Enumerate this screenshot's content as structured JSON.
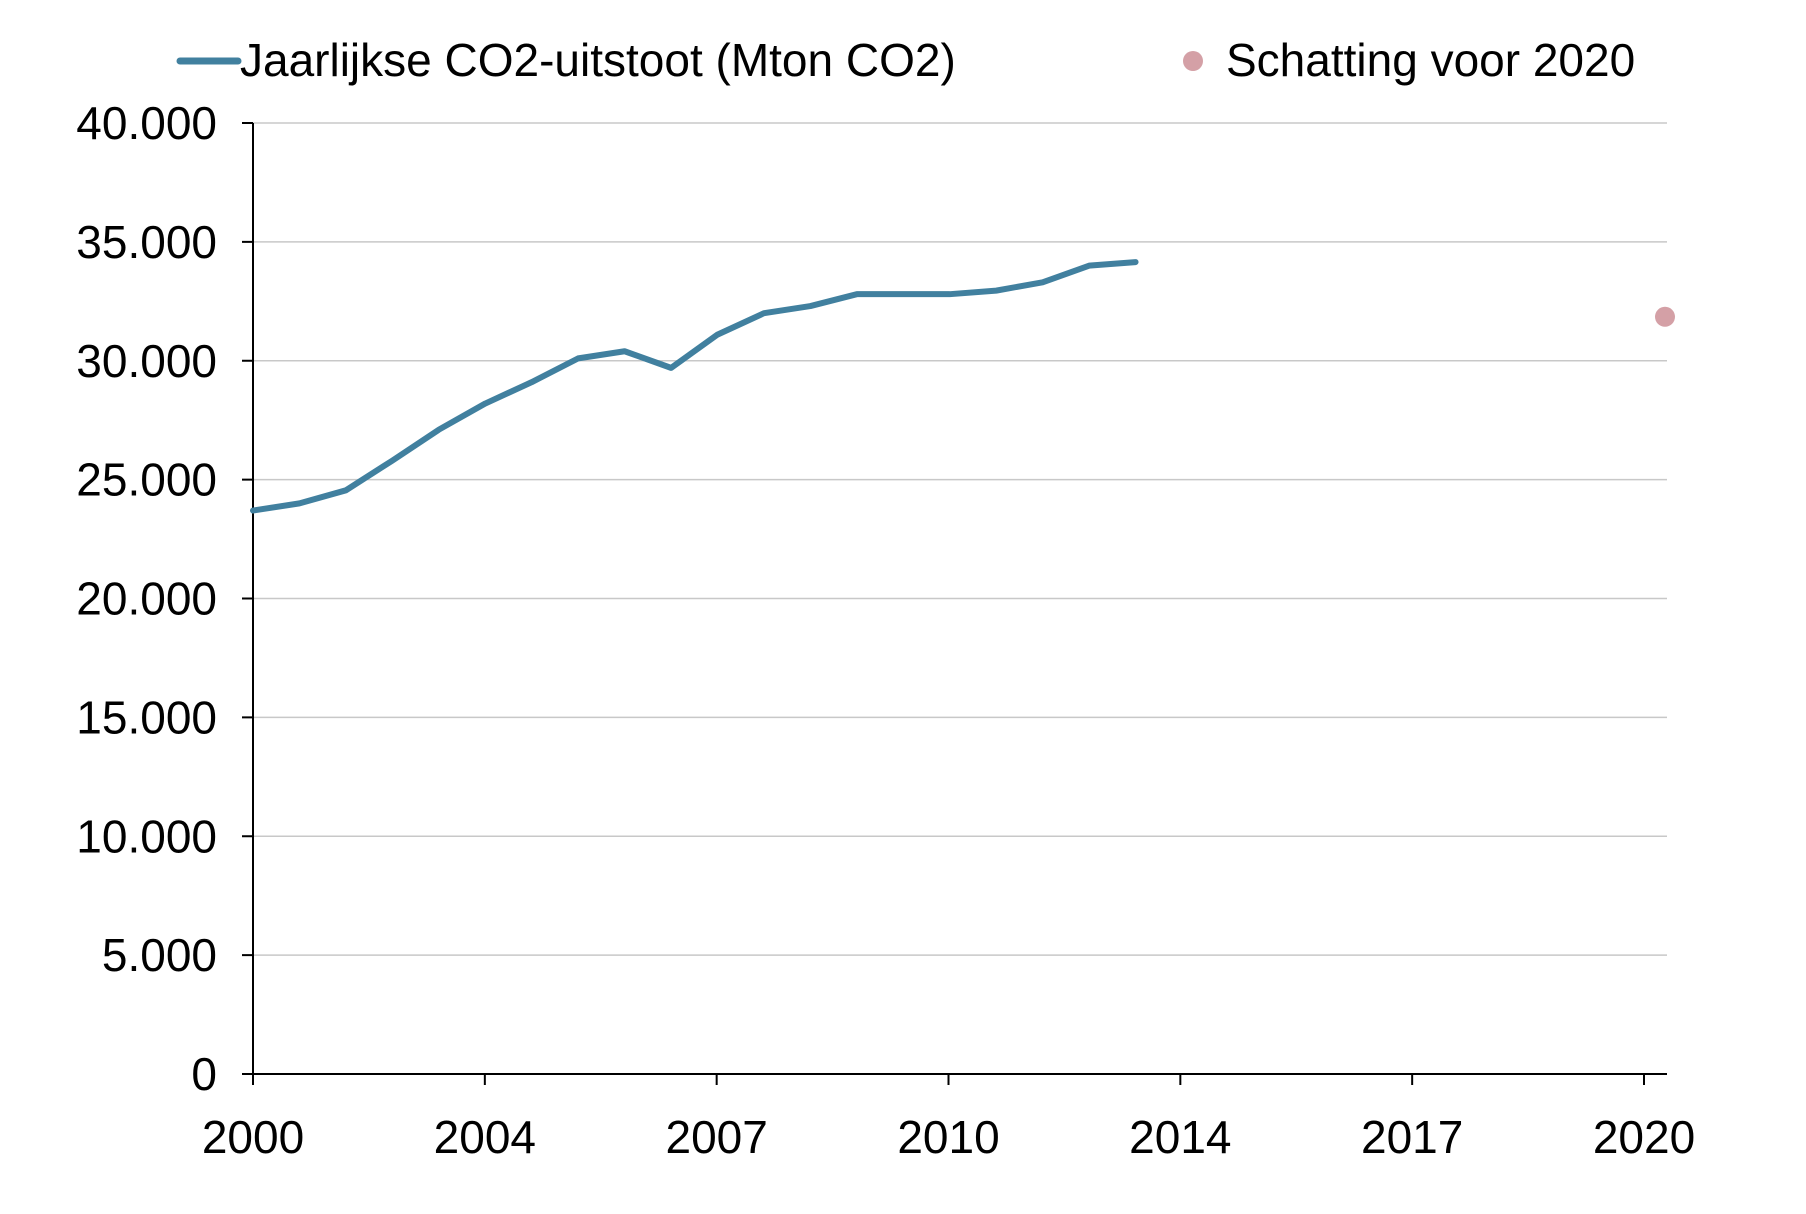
{
  "chart_data": {
    "type": "line",
    "title": "",
    "xlabel": "",
    "ylabel": "",
    "ylim": [
      0,
      40000
    ],
    "y_ticks": [
      0,
      5000,
      10000,
      15000,
      20000,
      25000,
      30000,
      35000,
      40000
    ],
    "y_tick_labels": [
      "0",
      "5.000",
      "10.000",
      "15.000",
      "20.000",
      "25.000",
      "30.000",
      "35.000",
      "40.000"
    ],
    "x_tick_labels": [
      "2000",
      "2004",
      "2007",
      "2010",
      "2014",
      "2017",
      "2020"
    ],
    "x_categories": [
      "2000",
      "2001",
      "2002",
      "2003",
      "2004",
      "2005",
      "2006",
      "2007",
      "2008",
      "2009",
      "2010",
      "2011",
      "2012",
      "2013",
      "2014",
      "2015",
      "2016",
      "2017",
      "2018",
      "2019",
      "2020"
    ],
    "grid": true,
    "legend_position": "top",
    "series": [
      {
        "name": "Jaarlijkse CO2-uitstoot (Mton CO2)",
        "kind": "line",
        "color": "#41809f",
        "values": [
          23700,
          24000,
          24550,
          25800,
          27100,
          28200,
          29100,
          30100,
          30400,
          29700,
          31100,
          32000,
          32300,
          32800,
          32800,
          32800,
          32950,
          33300,
          34000,
          34150,
          null
        ]
      },
      {
        "name": "Schatting voor 2020",
        "kind": "point",
        "color": "#d4a0a6",
        "values": [
          null,
          null,
          null,
          null,
          null,
          null,
          null,
          null,
          null,
          null,
          null,
          null,
          null,
          null,
          null,
          null,
          null,
          null,
          null,
          null,
          31850
        ]
      }
    ]
  }
}
